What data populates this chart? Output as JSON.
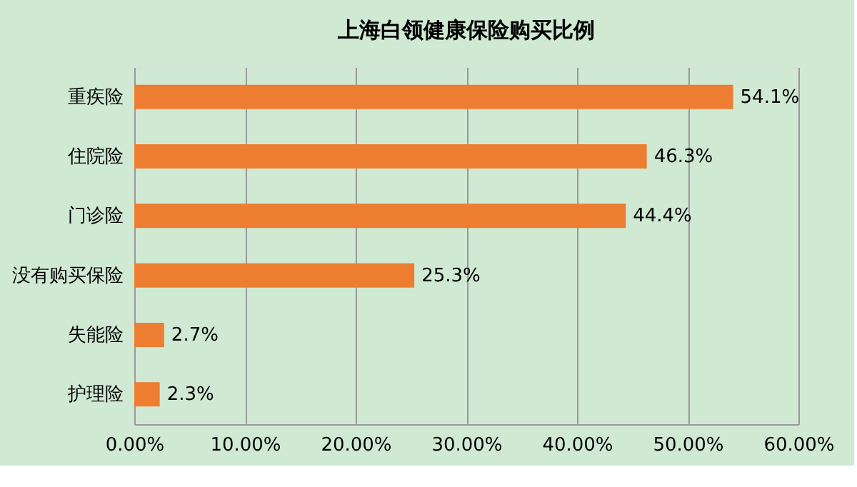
{
  "chart_data": {
    "type": "bar",
    "orientation": "horizontal",
    "title": "上海白领健康保险购买比例",
    "categories": [
      "重疾险",
      "住院险",
      "门诊险",
      "没有购买保险",
      "失能险",
      "护理险"
    ],
    "values": [
      54.1,
      46.3,
      44.4,
      25.3,
      2.7,
      2.3
    ],
    "value_labels": [
      "54.1%",
      "46.3%",
      "44.4%",
      "25.3%",
      "2.7%",
      "2.3%"
    ],
    "color": "#ed7d31",
    "xlim": [
      0,
      60
    ],
    "xticks": [
      {
        "value": 0,
        "label": "0.00%"
      },
      {
        "value": 10,
        "label": "10.00%"
      },
      {
        "value": 20,
        "label": "20.00%"
      },
      {
        "value": 30,
        "label": "30.00%"
      },
      {
        "value": 40,
        "label": "40.00%"
      },
      {
        "value": 50,
        "label": "50.00%"
      },
      {
        "value": 60,
        "label": "60.00%"
      }
    ],
    "grid": "x"
  }
}
